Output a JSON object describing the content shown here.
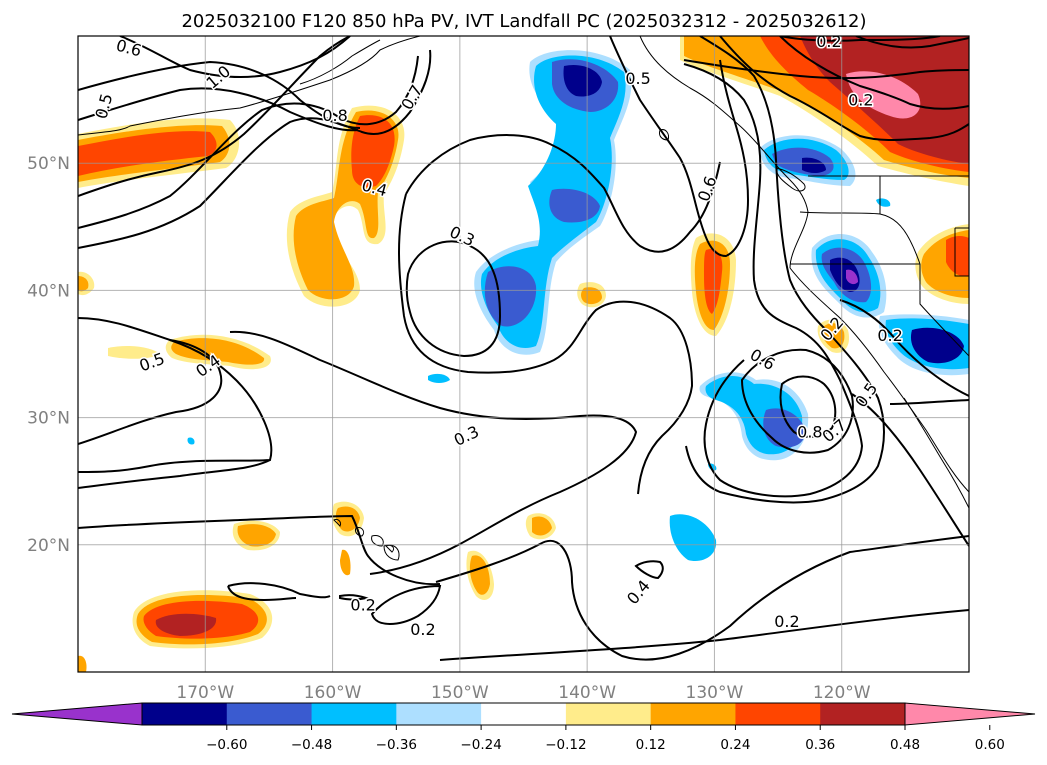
{
  "title": "2025032100 F120 850 hPa PV, IVT Landfall PC (2025032312 - 2025032612)",
  "map": {
    "lon_range": [
      -180,
      -110
    ],
    "lat_range": [
      10,
      60
    ],
    "lon_ticks": [
      {
        "lon": -170,
        "label": "170°W"
      },
      {
        "lon": -160,
        "label": "160°W"
      },
      {
        "lon": -150,
        "label": "150°W"
      },
      {
        "lon": -140,
        "label": "140°W"
      },
      {
        "lon": -130,
        "label": "130°W"
      },
      {
        "lon": -120,
        "label": "120°W"
      }
    ],
    "lat_ticks": [
      {
        "lat": 50,
        "label": "50°N"
      },
      {
        "lat": 40,
        "label": "40°N"
      },
      {
        "lat": 30,
        "label": "30°N"
      },
      {
        "lat": 20,
        "label": "20°N"
      }
    ],
    "gridlines": true
  },
  "colorbar": {
    "colors": [
      "#9932cc",
      "#00008b",
      "#3a5bd0",
      "#00bfff",
      "#addfff",
      "#ffffff",
      "#ffec8b",
      "#ffa500",
      "#ff4500",
      "#b22222",
      "#ff88aa"
    ],
    "tick_labels": [
      "−0.60",
      "−0.48",
      "−0.36",
      "−0.24",
      "−0.12",
      "0.12",
      "0.24",
      "0.36",
      "0.48",
      "0.60"
    ]
  },
  "contour_labels": [
    {
      "text": "0.6",
      "lon": -176.0,
      "lat": 59.1,
      "rot": 15
    },
    {
      "text": "1.0",
      "lon": -169.0,
      "lat": 56.8,
      "rot": -40
    },
    {
      "text": "0.5",
      "lon": -178.0,
      "lat": 54.5,
      "rot": -75
    },
    {
      "text": "0.7",
      "lon": -153.8,
      "lat": 55.2,
      "rot": -60
    },
    {
      "text": "0.8",
      "lon": -159.8,
      "lat": 53.8,
      "rot": 0
    },
    {
      "text": "0.4",
      "lon": -156.7,
      "lat": 48.1,
      "rot": 15
    },
    {
      "text": "0.3",
      "lon": -149.8,
      "lat": 44.3,
      "rot": 25
    },
    {
      "text": "0.5",
      "lon": -136.0,
      "lat": 56.7,
      "rot": 0
    },
    {
      "text": "0.6",
      "lon": -130.6,
      "lat": 48.0,
      "rot": -70
    },
    {
      "text": "0.2",
      "lon": -121.0,
      "lat": 59.6,
      "rot": 0
    },
    {
      "text": "0.2",
      "lon": -118.5,
      "lat": 55.0,
      "rot": 0
    },
    {
      "text": "0.2",
      "lon": -116.2,
      "lat": 36.5,
      "rot": 0
    },
    {
      "text": "0.2",
      "lon": -120.8,
      "lat": 37.0,
      "rot": -50
    },
    {
      "text": "0.5",
      "lon": -118.1,
      "lat": 31.8,
      "rot": -55
    },
    {
      "text": "0.6",
      "lon": -126.2,
      "lat": 34.6,
      "rot": 30
    },
    {
      "text": "0.8",
      "lon": -122.5,
      "lat": 28.9,
      "rot": 0
    },
    {
      "text": "0.7",
      "lon": -120.6,
      "lat": 29.0,
      "rot": -40
    },
    {
      "text": "0.5",
      "lon": -174.2,
      "lat": 34.4,
      "rot": -20
    },
    {
      "text": "0.4",
      "lon": -169.8,
      "lat": 34.1,
      "rot": -35
    },
    {
      "text": "0.3",
      "lon": -149.5,
      "lat": 28.6,
      "rot": -25
    },
    {
      "text": "0.4",
      "lon": -136.0,
      "lat": 16.3,
      "rot": -50
    },
    {
      "text": "0.2",
      "lon": -157.6,
      "lat": 15.3,
      "rot": 0
    },
    {
      "text": "0.2",
      "lon": -152.9,
      "lat": 13.4,
      "rot": 0
    },
    {
      "text": "0.2",
      "lon": -124.3,
      "lat": 14.0,
      "rot": 0
    }
  ]
}
